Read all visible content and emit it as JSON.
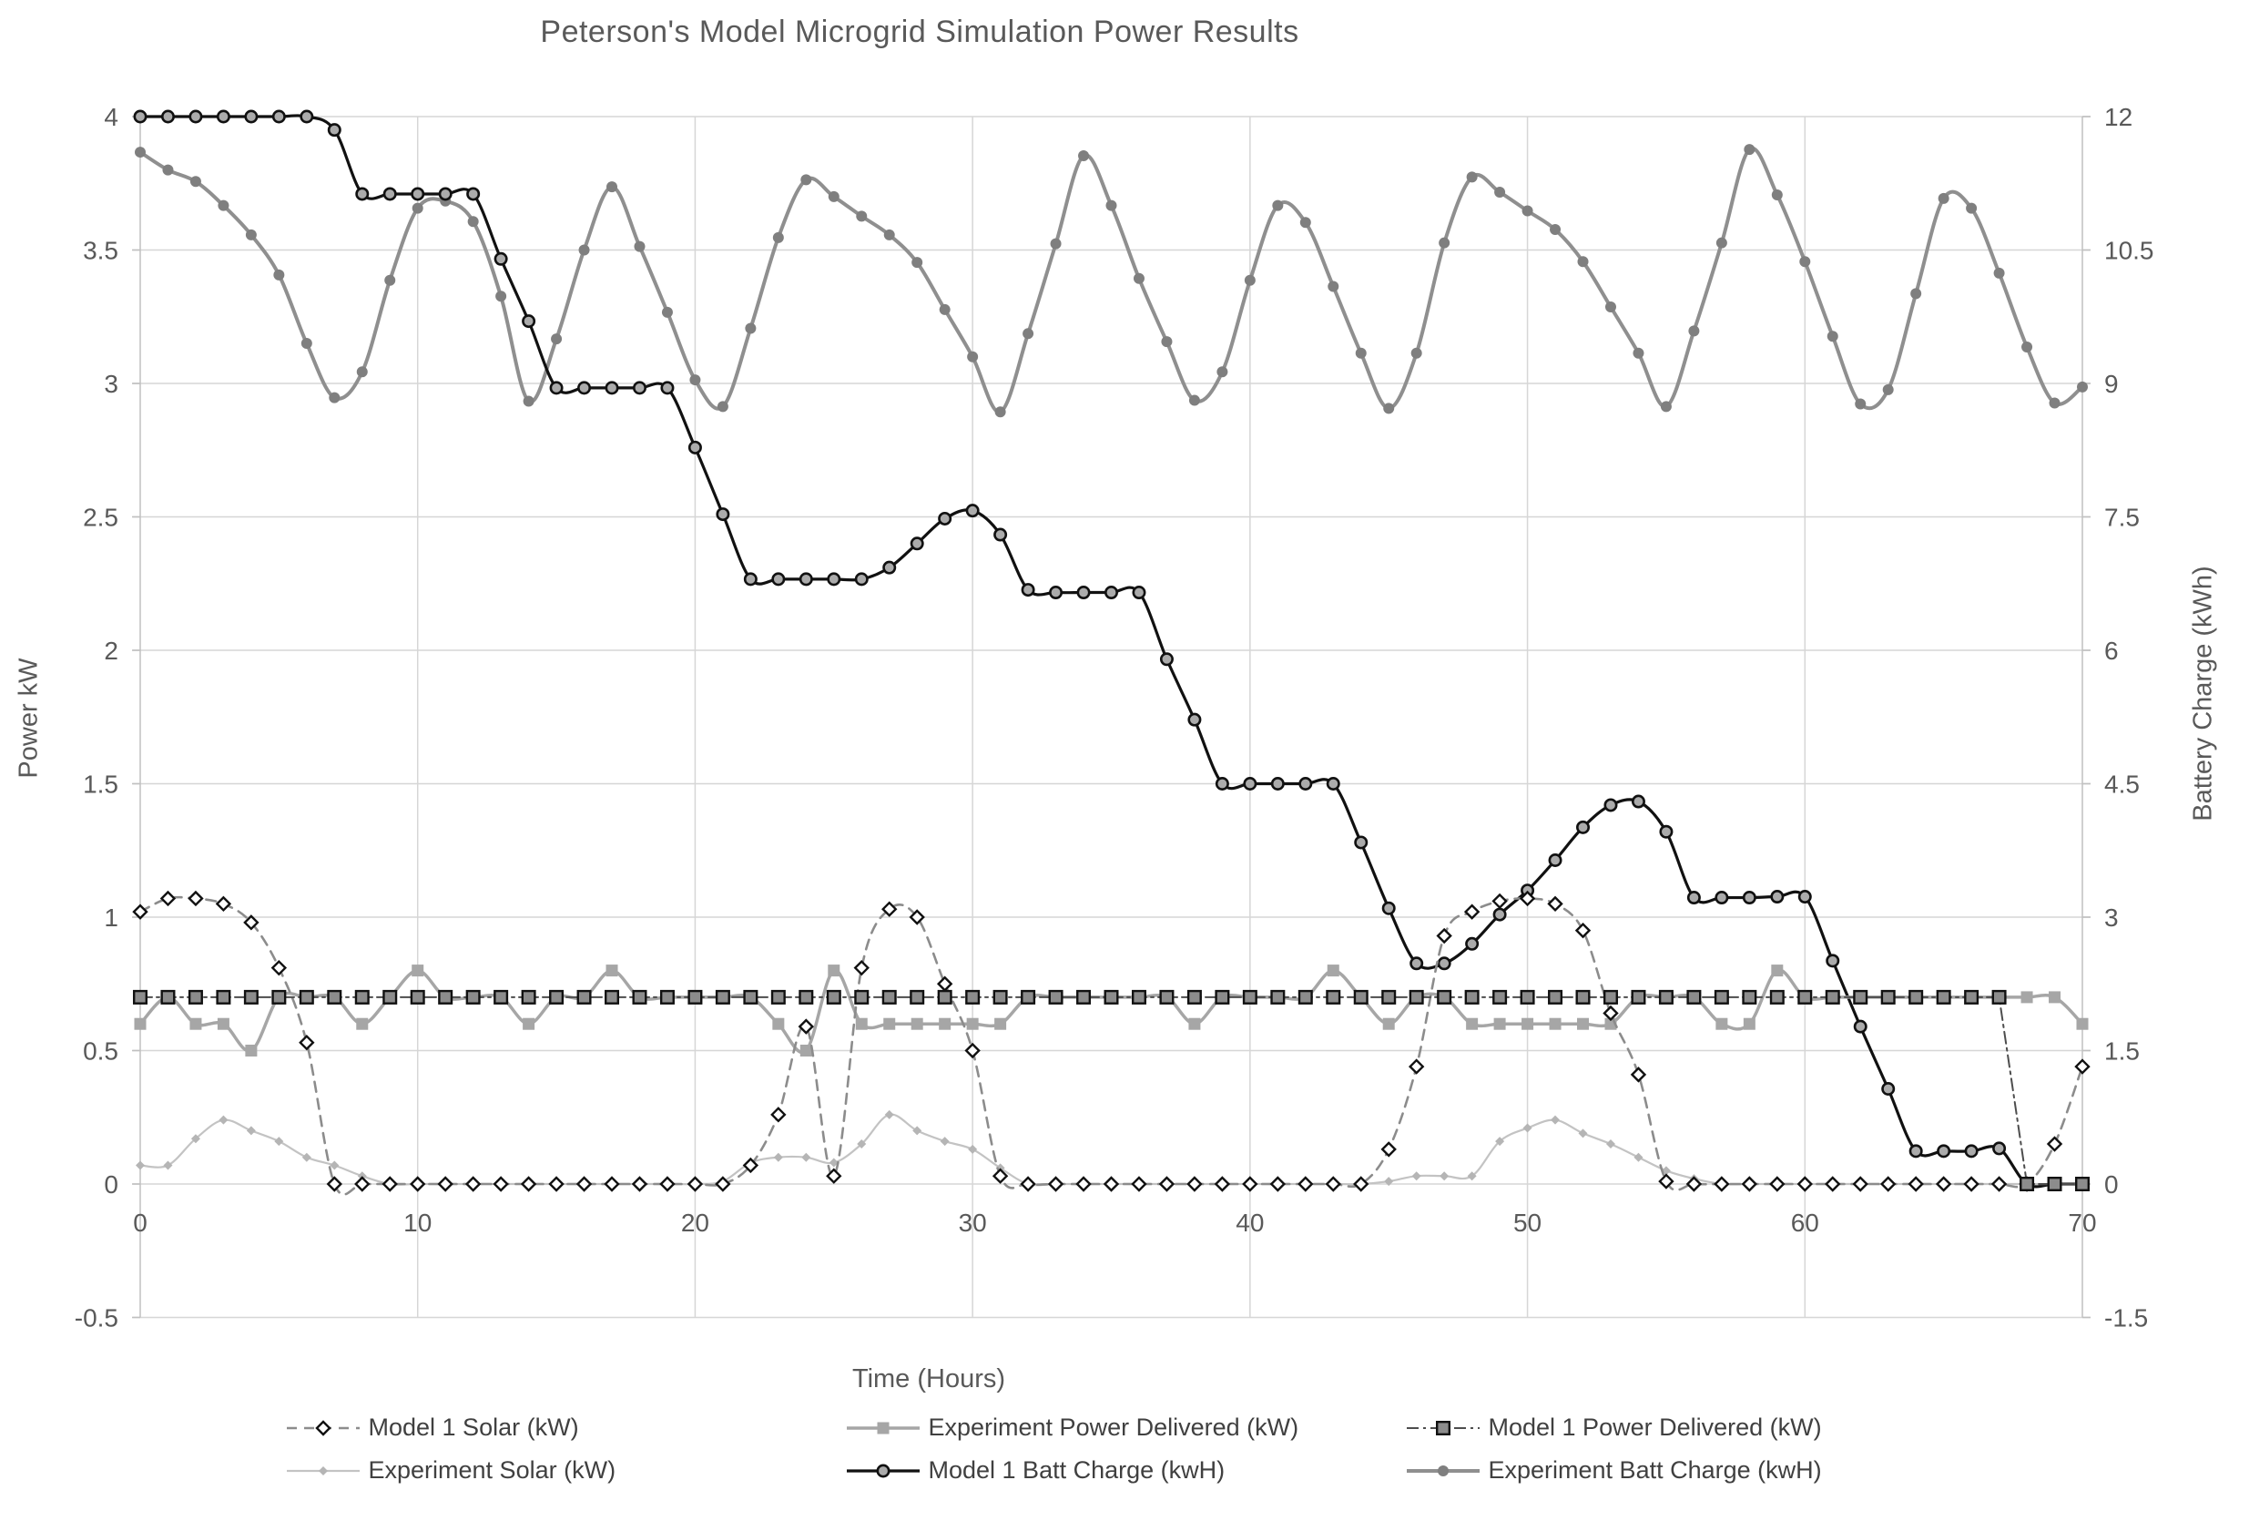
{
  "chart": {
    "title": "Peterson's Model Microgrid Simulation Power Results",
    "x_axis": {
      "label": "Time (Hours)",
      "ticks": [
        0,
        10,
        20,
        30,
        40,
        50,
        60,
        70
      ],
      "min": 0,
      "max": 70
    },
    "y_left": {
      "label": "Power kW",
      "ticks": [
        4,
        3.5,
        3,
        2.5,
        2,
        1.5,
        1,
        0.5,
        0,
        -0.5
      ],
      "min": -0.5,
      "max": 4
    },
    "y_right": {
      "label": "Battery Charge (kWh)",
      "ticks": [
        12,
        10.5,
        9,
        7.5,
        6,
        4.5,
        3,
        1.5,
        0,
        -1.5
      ],
      "min": -1.5,
      "max": 12
    },
    "colors": {
      "title_text": "#595959",
      "axis_text": "#595959",
      "gridline": "#d6d6d6",
      "axis_line": "#c0c0c0",
      "black_series": "#111111",
      "gray_series": "#8f8f8f",
      "light_gray_series": "#c3c3c3",
      "medium_gray_series": "#a6a6a6"
    }
  },
  "chart_data": {
    "type": "line",
    "title": "Peterson's Model Microgrid Simulation Power Results",
    "xlabel": "Time (Hours)",
    "ylabel_left": "Power kW",
    "ylabel_right": "Battery Charge (kWh)",
    "x_range": [
      0,
      70
    ],
    "x_step": 1,
    "ylim_left": [
      -0.5,
      4
    ],
    "ylim_right": [
      -1.5,
      12
    ],
    "grid": true,
    "legend_position": "bottom",
    "series": [
      {
        "key": "experiment_batt",
        "name": "Experiment Batt Charge (kwH)",
        "axis": "right",
        "color": "#8f8f8f",
        "width": 4,
        "dash": "",
        "marker": "circle",
        "msize": 6,
        "mfill": "#7f7f7f",
        "mstroke": "",
        "msw": 0,
        "smooth": true,
        "values": [
          11.6,
          11.4,
          11.27,
          11.0,
          10.67,
          10.22,
          9.45,
          8.84,
          9.13,
          10.16,
          10.97,
          11.05,
          10.82,
          9.98,
          8.8,
          9.5,
          10.5,
          11.21,
          10.54,
          9.8,
          9.04,
          8.74,
          9.62,
          10.64,
          11.29,
          11.1,
          10.88,
          10.67,
          10.36,
          9.83,
          9.3,
          8.68,
          9.56,
          10.57,
          11.56,
          11.0,
          10.18,
          9.47,
          8.81,
          9.13,
          10.16,
          11.0,
          10.81,
          10.09,
          9.34,
          8.72,
          9.34,
          10.58,
          11.32,
          11.15,
          10.94,
          10.73,
          10.37,
          9.86,
          9.34,
          8.74,
          9.59,
          10.58,
          11.63,
          11.12,
          10.37,
          9.53,
          8.77,
          8.93,
          10.01,
          11.08,
          10.97,
          10.24,
          9.41,
          8.78,
          8.96
        ]
      },
      {
        "key": "model1_batt",
        "name": "Model 1 Batt Charge (kwH)",
        "axis": "right",
        "color": "#111111",
        "width": 3.2,
        "dash": "",
        "marker": "circle",
        "msize": 6.2,
        "mfill": "#ababab",
        "mstroke": "#111111",
        "msw": 2.6,
        "smooth": true,
        "values": [
          12,
          12,
          12,
          12,
          12,
          12,
          12,
          11.85,
          11.13,
          11.13,
          11.13,
          11.13,
          11.13,
          10.4,
          9.7,
          8.95,
          8.95,
          8.95,
          8.95,
          8.95,
          8.28,
          7.53,
          6.8,
          6.8,
          6.8,
          6.8,
          6.8,
          6.93,
          7.2,
          7.48,
          7.57,
          7.3,
          6.68,
          6.65,
          6.65,
          6.65,
          6.65,
          5.9,
          5.22,
          4.5,
          4.5,
          4.5,
          4.5,
          4.5,
          3.84,
          3.1,
          2.48,
          2.48,
          2.7,
          3.03,
          3.3,
          3.64,
          4.01,
          4.26,
          4.3,
          3.96,
          3.22,
          3.22,
          3.22,
          3.23,
          3.23,
          2.51,
          1.77,
          1.07,
          0.37,
          0.37,
          0.37,
          0.4,
          0,
          0,
          0
        ]
      },
      {
        "key": "experiment_solar",
        "name": "Experiment Solar (kW)",
        "axis": "left",
        "color": "#c3c3c3",
        "width": 2.2,
        "dash": "",
        "marker": "diamond",
        "msize": 5,
        "mfill": "#b5b5b5",
        "mstroke": "",
        "msw": 0,
        "smooth": true,
        "values": [
          0.07,
          0.07,
          0.17,
          0.24,
          0.2,
          0.16,
          0.1,
          0.07,
          0.03,
          0,
          0,
          0,
          0,
          0,
          0,
          0,
          0,
          0,
          0,
          0,
          0,
          0.01,
          0.08,
          0.1,
          0.1,
          0.08,
          0.15,
          0.26,
          0.2,
          0.16,
          0.13,
          0.06,
          0,
          0,
          0,
          0,
          0,
          0,
          0,
          0,
          0,
          0,
          0,
          0,
          0,
          0.01,
          0.03,
          0.03,
          0.03,
          0.16,
          0.21,
          0.24,
          0.19,
          0.15,
          0.1,
          0.05,
          0.02,
          0,
          0,
          0,
          0,
          0,
          0,
          0,
          0,
          0,
          0,
          0,
          0,
          0,
          0
        ]
      },
      {
        "key": "experiment_power",
        "name": "Experiment Power Delivered (kW)",
        "axis": "left",
        "color": "#a6a6a6",
        "width": 3.5,
        "dash": "",
        "marker": "square",
        "msize": 6.5,
        "mfill": "#a6a6a6",
        "mstroke": "",
        "msw": 0,
        "smooth": true,
        "values": [
          0.6,
          0.7,
          0.6,
          0.6,
          0.5,
          0.7,
          0.7,
          0.7,
          0.6,
          0.7,
          0.8,
          0.7,
          0.7,
          0.7,
          0.6,
          0.7,
          0.7,
          0.8,
          0.7,
          0.7,
          0.7,
          0.7,
          0.7,
          0.6,
          0.5,
          0.8,
          0.6,
          0.6,
          0.6,
          0.6,
          0.6,
          0.6,
          0.7,
          0.7,
          0.7,
          0.7,
          0.7,
          0.7,
          0.6,
          0.7,
          0.7,
          0.7,
          0.7,
          0.8,
          0.7,
          0.6,
          0.7,
          0.7,
          0.6,
          0.6,
          0.6,
          0.6,
          0.6,
          0.6,
          0.7,
          0.7,
          0.7,
          0.6,
          0.6,
          0.8,
          0.7,
          0.7,
          0.7,
          0.7,
          0.7,
          0.7,
          0.7,
          0.7,
          0.7,
          0.7,
          0.6
        ]
      },
      {
        "key": "model1_solar",
        "name": "Model 1 Solar (kW)",
        "axis": "left",
        "color": "#8c8c8c",
        "width": 2.6,
        "dash": "11 8",
        "marker": "diamond",
        "msize": 7,
        "mfill": "#ffffff",
        "mstroke": "#111111",
        "msw": 2.4,
        "smooth": true,
        "values": [
          1.02,
          1.07,
          1.07,
          1.05,
          0.98,
          0.81,
          0.53,
          0,
          0,
          0,
          0,
          0,
          0,
          0,
          0,
          0,
          0,
          0,
          0,
          0,
          0,
          0,
          0.07,
          0.26,
          0.59,
          0.03,
          0.81,
          1.03,
          1.0,
          0.75,
          0.5,
          0.03,
          0,
          0,
          0,
          0,
          0,
          0,
          0,
          0,
          0,
          0,
          0,
          0,
          0,
          0.13,
          0.44,
          0.93,
          1.02,
          1.06,
          1.07,
          1.05,
          0.95,
          0.64,
          0.41,
          0.01,
          0,
          0,
          0,
          0,
          0,
          0,
          0,
          0,
          0,
          0,
          0,
          0,
          0,
          0.15,
          0.44
        ]
      },
      {
        "key": "model1_power",
        "name": "Model 1 Power Delivered (kW)",
        "axis": "left",
        "color": "#4d4d4d",
        "width": 2,
        "dash": "13 5 3 5",
        "marker": "square",
        "msize": 6.8,
        "mfill": "#8c8c8c",
        "mstroke": "#111111",
        "msw": 2.4,
        "smooth": false,
        "values": [
          0.7,
          0.7,
          0.7,
          0.7,
          0.7,
          0.7,
          0.7,
          0.7,
          0.7,
          0.7,
          0.7,
          0.7,
          0.7,
          0.7,
          0.7,
          0.7,
          0.7,
          0.7,
          0.7,
          0.7,
          0.7,
          0.7,
          0.7,
          0.7,
          0.7,
          0.7,
          0.7,
          0.7,
          0.7,
          0.7,
          0.7,
          0.7,
          0.7,
          0.7,
          0.7,
          0.7,
          0.7,
          0.7,
          0.7,
          0.7,
          0.7,
          0.7,
          0.7,
          0.7,
          0.7,
          0.7,
          0.7,
          0.7,
          0.7,
          0.7,
          0.7,
          0.7,
          0.7,
          0.7,
          0.7,
          0.7,
          0.7,
          0.7,
          0.7,
          0.7,
          0.7,
          0.7,
          0.7,
          0.7,
          0.7,
          0.7,
          0.7,
          0.7,
          0,
          0,
          0
        ]
      }
    ]
  },
  "legend": {
    "row1": [
      "Model 1 Solar (kW)",
      "Experiment Power Delivered (kW)",
      "Model 1 Power Delivered (kW)"
    ],
    "row2": [
      "Experiment Solar (kW)",
      "Model 1 Batt Charge (kwH)",
      "Experiment Batt Charge (kwH)"
    ]
  }
}
